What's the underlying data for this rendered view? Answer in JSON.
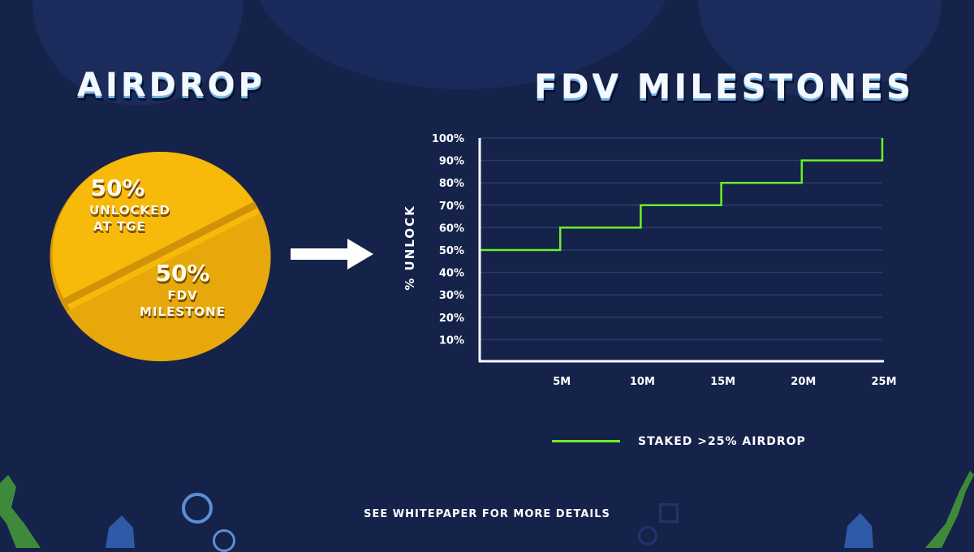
{
  "headings": {
    "left": "AIRDROP",
    "right": "FDV MILESTONES"
  },
  "coin": {
    "top_pct": "50%",
    "top_line1": "UNLOCKED",
    "top_line2": "AT TGE",
    "bottom_pct": "50%",
    "bottom_line1": "FDV",
    "bottom_line2": "MILESTONE"
  },
  "colors": {
    "background": "#15224a",
    "coin": "#f7b90a",
    "line": "#6cf026",
    "grid": "#2d3b6a"
  },
  "chart_data": {
    "type": "line",
    "step": true,
    "ylabel": "% UNLOCK",
    "xlabel": "",
    "x_ticks": [
      "5M",
      "10M",
      "15M",
      "20M",
      "25M"
    ],
    "y_ticks": [
      "10%",
      "20%",
      "30%",
      "40%",
      "50%",
      "60%",
      "70%",
      "80%",
      "90%",
      "100%"
    ],
    "xlim": [
      0,
      25
    ],
    "ylim": [
      0,
      100
    ],
    "grid": true,
    "legend_position": "bottom",
    "series": [
      {
        "name": "STAKED >25% AIRDROP",
        "x": [
          0,
          5,
          5,
          10,
          10,
          15,
          15,
          20,
          20,
          25,
          25
        ],
        "y": [
          50,
          50,
          60,
          60,
          70,
          70,
          80,
          80,
          90,
          90,
          100
        ]
      }
    ]
  },
  "footer": "SEE WHITEPAPER FOR MORE DETAILS"
}
